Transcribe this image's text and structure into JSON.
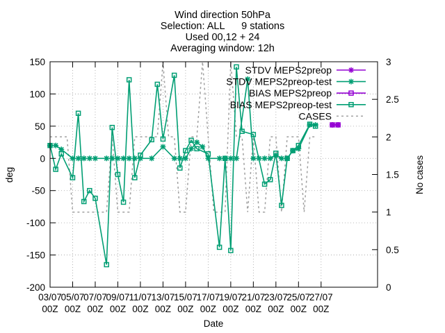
{
  "chart_data": {
    "type": "line",
    "title_lines": [
      "Wind direction 50hPa",
      "Selection: ALL      9 stations",
      "Used 00,12 + 24",
      "Averaging window: 12h"
    ],
    "xlabel": "Date",
    "ylabel": "deg",
    "y2label": "No cases",
    "x_range": [
      0,
      29
    ],
    "ylim": [
      -200,
      150
    ],
    "y_ticks": [
      "-200",
      "-150",
      "-100",
      "-50",
      "0",
      "50",
      "100",
      "150"
    ],
    "y2lim": [
      0,
      3
    ],
    "y2_ticks": [
      "0",
      "0.5",
      "1",
      "1.5",
      "2",
      "2.5",
      "3"
    ],
    "x_ticks": [
      {
        "pos": 0,
        "date": "03/07",
        "hour": "00Z"
      },
      {
        "pos": 2,
        "date": "05/07",
        "hour": "00Z"
      },
      {
        "pos": 4,
        "date": "07/07",
        "hour": "00Z"
      },
      {
        "pos": 6,
        "date": "09/07",
        "hour": "00Z"
      },
      {
        "pos": 8,
        "date": "11/07",
        "hour": "00Z"
      },
      {
        "pos": 10,
        "date": "13/07",
        "hour": "00Z"
      },
      {
        "pos": 12,
        "date": "15/07",
        "hour": "00Z"
      },
      {
        "pos": 14,
        "date": "17/07",
        "hour": "00Z"
      },
      {
        "pos": 16,
        "date": "19/07",
        "hour": "00Z"
      },
      {
        "pos": 18,
        "date": "21/07",
        "hour": "00Z"
      },
      {
        "pos": 20,
        "date": "23/07",
        "hour": "00Z"
      },
      {
        "pos": 22,
        "date": "25/07",
        "hour": "00Z"
      },
      {
        "pos": 24,
        "date": "27/07",
        "hour": "00Z"
      }
    ],
    "grid": true,
    "legend_position": "top-right",
    "series": [
      {
        "name": "STDV MEPS2preop",
        "color": "#9400d3",
        "marker": "star",
        "axis": "y1",
        "points": [
          [
            25.0,
            52
          ],
          [
            25.5,
            52
          ]
        ]
      },
      {
        "name": "STDV MEPS2preop-test",
        "color": "#009e73",
        "marker": "star",
        "axis": "y1",
        "points": [
          [
            0.0,
            20
          ],
          [
            0.5,
            20
          ],
          [
            1.0,
            14
          ],
          [
            2.0,
            0
          ],
          [
            2.5,
            0
          ],
          [
            3.0,
            0
          ],
          [
            3.5,
            0
          ],
          [
            4.0,
            0
          ],
          [
            5.0,
            0
          ],
          [
            5.5,
            0
          ],
          [
            6.0,
            0
          ],
          [
            6.5,
            0
          ],
          [
            7.0,
            0
          ],
          [
            7.5,
            0
          ],
          [
            8.0,
            0
          ],
          [
            9.0,
            0
          ],
          [
            10.0,
            18
          ],
          [
            11.0,
            0
          ],
          [
            11.5,
            0
          ],
          [
            12.0,
            0
          ],
          [
            12.5,
            15
          ],
          [
            13.0,
            25
          ],
          [
            13.5,
            18
          ],
          [
            14.0,
            0
          ],
          [
            15.0,
            0
          ],
          [
            15.5,
            0
          ],
          [
            16.0,
            0
          ],
          [
            16.5,
            0
          ],
          [
            17.5,
            123
          ],
          [
            18.0,
            0
          ],
          [
            18.5,
            0
          ],
          [
            19.0,
            0
          ],
          [
            19.5,
            0
          ],
          [
            20.0,
            5
          ],
          [
            20.5,
            0
          ],
          [
            21.0,
            0
          ],
          [
            21.5,
            12
          ],
          [
            22.0,
            15
          ],
          [
            23.0,
            52
          ],
          [
            23.5,
            52
          ]
        ]
      },
      {
        "name": "BIAS MEPS2preop",
        "color": "#9400d3",
        "marker": "box",
        "axis": "y1",
        "points": [
          [
            25.0,
            52
          ],
          [
            25.5,
            52
          ]
        ]
      },
      {
        "name": "BIAS MEPS2preop-test",
        "color": "#009e73",
        "marker": "box",
        "axis": "y1",
        "points": [
          [
            0.0,
            20
          ],
          [
            0.5,
            -17
          ],
          [
            1.0,
            7
          ],
          [
            2.0,
            -30
          ],
          [
            2.5,
            70
          ],
          [
            3.0,
            -67
          ],
          [
            3.5,
            -50
          ],
          [
            4.0,
            -62
          ],
          [
            5.0,
            -165
          ],
          [
            5.5,
            48
          ],
          [
            6.0,
            -25
          ],
          [
            6.5,
            -68
          ],
          [
            7.0,
            122
          ],
          [
            7.5,
            -30
          ],
          [
            8.0,
            5
          ],
          [
            9.0,
            29
          ],
          [
            9.5,
            115
          ],
          [
            10.0,
            30
          ],
          [
            11.0,
            129
          ],
          [
            11.5,
            -15
          ],
          [
            12.0,
            12
          ],
          [
            12.5,
            28
          ],
          [
            13.0,
            15
          ],
          [
            14.0,
            7
          ],
          [
            15.0,
            -138
          ],
          [
            15.5,
            0
          ],
          [
            16.0,
            -143
          ],
          [
            16.5,
            142
          ],
          [
            17.0,
            42
          ],
          [
            18.0,
            37
          ],
          [
            19.0,
            -40
          ],
          [
            19.5,
            -33
          ],
          [
            20.0,
            8
          ],
          [
            20.5,
            -73
          ],
          [
            21.0,
            0
          ],
          [
            21.5,
            12
          ],
          [
            22.0,
            20
          ],
          [
            23.0,
            53
          ],
          [
            23.5,
            50
          ]
        ]
      },
      {
        "name": "CASES",
        "color": "#a0a0a0",
        "marker": "none",
        "dash": true,
        "axis": "y2",
        "points": [
          [
            0.0,
            2
          ],
          [
            0.5,
            2
          ],
          [
            1.0,
            2
          ],
          [
            1.5,
            2
          ],
          [
            2.0,
            1
          ],
          [
            2.5,
            1
          ],
          [
            3.0,
            1
          ],
          [
            3.5,
            1
          ],
          [
            4.0,
            1
          ],
          [
            4.5,
            1
          ],
          [
            5.0,
            1
          ],
          [
            5.5,
            2
          ],
          [
            6.0,
            1
          ],
          [
            6.5,
            1
          ],
          [
            7.0,
            1
          ],
          [
            7.5,
            2
          ],
          [
            8.0,
            2
          ],
          [
            8.5,
            2
          ],
          [
            9.0,
            2
          ],
          [
            9.5,
            2
          ],
          [
            10.0,
            3
          ],
          [
            10.5,
            2
          ],
          [
            11.0,
            2
          ],
          [
            11.5,
            1
          ],
          [
            12.0,
            1
          ],
          [
            12.5,
            2
          ],
          [
            13.0,
            2
          ],
          [
            13.5,
            3
          ],
          [
            14.0,
            2
          ],
          [
            14.5,
            1
          ],
          [
            15.0,
            1
          ],
          [
            15.5,
            1
          ],
          [
            16.0,
            3
          ],
          [
            16.5,
            2
          ],
          [
            17.0,
            2
          ],
          [
            17.5,
            1
          ],
          [
            18.0,
            2
          ],
          [
            18.5,
            1
          ],
          [
            19.0,
            1
          ],
          [
            19.5,
            2
          ],
          [
            20.0,
            2
          ],
          [
            20.5,
            1
          ],
          [
            21.0,
            2
          ],
          [
            21.5,
            2
          ],
          [
            22.0,
            2
          ],
          [
            22.5,
            1
          ],
          [
            23.0,
            2
          ],
          [
            23.5,
            2
          ]
        ]
      }
    ]
  }
}
